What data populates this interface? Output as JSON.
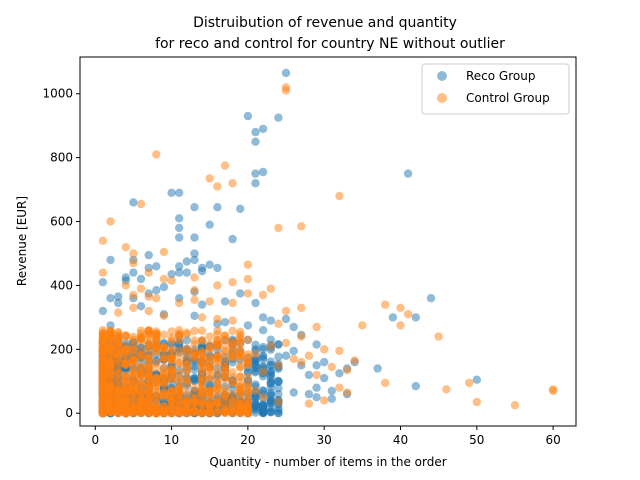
{
  "chart_data": {
    "type": "scatter",
    "title_line1": "Distruibution of revenue and quantity",
    "title_line2": "for reco and control for country NE without outlier",
    "xlabel": "Quantity - number of items in the order",
    "ylabel": "Revenue [EUR]",
    "xlim": [
      -2,
      63
    ],
    "ylim": [
      -40,
      1115
    ],
    "xticks": [
      0,
      10,
      20,
      30,
      40,
      50,
      60
    ],
    "yticks": [
      0,
      200,
      400,
      600,
      800,
      1000
    ],
    "grid": false,
    "legend_position": "upper right",
    "colors": {
      "reco": "#1f77b4",
      "control": "#ff7f0e"
    },
    "series": [
      {
        "name": "Reco Group",
        "color": "#1f77b4",
        "points": [
          [
            25,
            1065
          ],
          [
            20,
            930
          ],
          [
            24,
            925
          ],
          [
            22,
            890
          ],
          [
            21,
            880
          ],
          [
            21,
            850
          ],
          [
            22,
            755
          ],
          [
            21,
            750
          ],
          [
            21,
            720
          ],
          [
            41,
            750
          ],
          [
            5,
            660
          ],
          [
            10,
            690
          ],
          [
            11,
            690
          ],
          [
            13,
            645
          ],
          [
            16,
            645
          ],
          [
            19,
            640
          ],
          [
            11,
            610
          ],
          [
            15,
            590
          ],
          [
            11,
            580
          ],
          [
            11,
            550
          ],
          [
            13,
            550
          ],
          [
            18,
            545
          ],
          [
            7,
            495
          ],
          [
            13,
            500
          ],
          [
            13,
            480
          ],
          [
            5,
            480
          ],
          [
            2,
            480
          ],
          [
            12,
            475
          ],
          [
            15,
            465
          ],
          [
            8,
            460
          ],
          [
            16,
            455
          ],
          [
            14,
            455
          ],
          [
            11,
            460
          ],
          [
            7,
            455
          ],
          [
            11,
            440
          ],
          [
            14,
            445
          ],
          [
            5,
            440
          ],
          [
            12,
            440
          ],
          [
            10,
            435
          ],
          [
            4,
            425
          ],
          [
            6,
            420
          ],
          [
            4,
            415
          ],
          [
            1,
            410
          ],
          [
            9,
            395
          ],
          [
            8,
            385
          ],
          [
            13,
            380
          ],
          [
            7,
            375
          ],
          [
            19,
            375
          ],
          [
            3,
            365
          ],
          [
            2,
            360
          ],
          [
            11,
            360
          ],
          [
            5,
            360
          ],
          [
            44,
            360
          ],
          [
            39,
            300
          ],
          [
            42,
            300
          ],
          [
            17,
            350
          ],
          [
            3,
            345
          ],
          [
            21,
            345
          ],
          [
            14,
            340
          ],
          [
            6,
            335
          ],
          [
            1,
            320
          ],
          [
            9,
            310
          ],
          [
            13,
            305
          ],
          [
            22,
            300
          ],
          [
            25,
            295
          ],
          [
            23,
            290
          ],
          [
            17,
            285
          ],
          [
            16,
            280
          ],
          [
            2,
            275
          ],
          [
            20,
            275
          ],
          [
            26,
            270
          ],
          [
            22,
            260
          ],
          [
            27,
            245
          ],
          [
            11,
            240
          ],
          [
            18,
            230
          ],
          [
            23,
            230
          ],
          [
            19,
            220
          ],
          [
            29,
            215
          ],
          [
            24,
            215
          ],
          [
            21,
            200
          ],
          [
            26,
            195
          ],
          [
            25,
            180
          ],
          [
            22,
            180
          ],
          [
            30,
            160
          ],
          [
            34,
            160
          ],
          [
            27,
            150
          ],
          [
            29,
            150
          ],
          [
            33,
            140
          ],
          [
            37,
            140
          ],
          [
            32,
            125
          ],
          [
            28,
            120
          ],
          [
            30,
            110
          ],
          [
            24,
            100
          ],
          [
            42,
            85
          ],
          [
            50,
            105
          ],
          [
            29,
            80
          ],
          [
            31,
            70
          ],
          [
            26,
            65
          ],
          [
            28,
            60
          ],
          [
            33,
            60
          ],
          [
            29,
            50
          ],
          [
            31,
            45
          ],
          [
            23,
            40
          ],
          [
            19,
            35
          ],
          [
            24,
            15
          ],
          [
            14,
            5
          ],
          [
            16,
            5
          ],
          [
            17,
            15
          ],
          [
            20,
            10
          ],
          [
            2,
            240
          ],
          [
            3,
            230
          ],
          [
            5,
            220
          ],
          [
            7,
            210
          ],
          [
            9,
            220
          ],
          [
            11,
            200
          ],
          [
            14,
            190
          ],
          [
            16,
            180
          ],
          [
            18,
            170
          ],
          [
            1,
            120
          ],
          [
            2,
            100
          ],
          [
            4,
            80
          ],
          [
            6,
            60
          ],
          [
            8,
            40
          ],
          [
            10,
            30
          ],
          [
            12,
            20
          ],
          [
            15,
            15
          ],
          [
            3,
            10
          ],
          [
            1,
            0
          ]
        ]
      },
      {
        "name": "Control Group",
        "color": "#ff7f0e",
        "points": [
          [
            25,
            1020
          ],
          [
            25,
            1010
          ],
          [
            8,
            810
          ],
          [
            17,
            775
          ],
          [
            15,
            735
          ],
          [
            18,
            720
          ],
          [
            16,
            710
          ],
          [
            32,
            680
          ],
          [
            6,
            655
          ],
          [
            2,
            600
          ],
          [
            1,
            540
          ],
          [
            4,
            520
          ],
          [
            5,
            500
          ],
          [
            9,
            505
          ],
          [
            5,
            470
          ],
          [
            20,
            465
          ],
          [
            24,
            580
          ],
          [
            27,
            585
          ],
          [
            7,
            440
          ],
          [
            1,
            440
          ],
          [
            13,
            425
          ],
          [
            9,
            420
          ],
          [
            10,
            415
          ],
          [
            20,
            420
          ],
          [
            18,
            410
          ],
          [
            16,
            400
          ],
          [
            4,
            400
          ],
          [
            6,
            390
          ],
          [
            13,
            385
          ],
          [
            20,
            375
          ],
          [
            5,
            370
          ],
          [
            7,
            365
          ],
          [
            8,
            360
          ],
          [
            13,
            355
          ],
          [
            15,
            350
          ],
          [
            11,
            345
          ],
          [
            18,
            345
          ],
          [
            22,
            370
          ],
          [
            23,
            390
          ],
          [
            38,
            340
          ],
          [
            40,
            330
          ],
          [
            41,
            310
          ],
          [
            27,
            330
          ],
          [
            25,
            320
          ],
          [
            35,
            275
          ],
          [
            40,
            275
          ],
          [
            45,
            240
          ],
          [
            5,
            330
          ],
          [
            7,
            320
          ],
          [
            3,
            315
          ],
          [
            9,
            305
          ],
          [
            14,
            300
          ],
          [
            16,
            295
          ],
          [
            18,
            290
          ],
          [
            24,
            280
          ],
          [
            29,
            270
          ],
          [
            27,
            240
          ],
          [
            20,
            230
          ],
          [
            25,
            220
          ],
          [
            23,
            210
          ],
          [
            30,
            200
          ],
          [
            32,
            195
          ],
          [
            17,
            190
          ],
          [
            21,
            185
          ],
          [
            28,
            180
          ],
          [
            26,
            170
          ],
          [
            34,
            165
          ],
          [
            27,
            160
          ],
          [
            24,
            150
          ],
          [
            31,
            145
          ],
          [
            33,
            135
          ],
          [
            22,
            130
          ],
          [
            29,
            120
          ],
          [
            38,
            95
          ],
          [
            46,
            75
          ],
          [
            49,
            95
          ],
          [
            50,
            35
          ],
          [
            55,
            25
          ],
          [
            60,
            75
          ],
          [
            60,
            70
          ],
          [
            32,
            80
          ],
          [
            33,
            65
          ],
          [
            30,
            40
          ],
          [
            28,
            30
          ],
          [
            22,
            50
          ],
          [
            24,
            35
          ],
          [
            21,
            70
          ],
          [
            19,
            15
          ],
          [
            18,
            60
          ],
          [
            1,
            260
          ],
          [
            2,
            255
          ],
          [
            3,
            250
          ],
          [
            4,
            240
          ],
          [
            5,
            230
          ],
          [
            6,
            225
          ],
          [
            7,
            220
          ],
          [
            8,
            210
          ],
          [
            10,
            200
          ],
          [
            12,
            190
          ],
          [
            14,
            180
          ],
          [
            15,
            170
          ],
          [
            1,
            100
          ],
          [
            2,
            90
          ],
          [
            3,
            80
          ],
          [
            4,
            70
          ],
          [
            6,
            60
          ],
          [
            8,
            50
          ],
          [
            10,
            40
          ],
          [
            12,
            30
          ],
          [
            1,
            10
          ],
          [
            3,
            5
          ],
          [
            5,
            0
          ],
          [
            7,
            10
          ],
          [
            9,
            20
          ],
          [
            11,
            10
          ],
          [
            13,
            5
          ]
        ]
      }
    ],
    "dense_region": {
      "reco": {
        "x_max": 24,
        "y_max": 230
      },
      "control": {
        "x_max": 20,
        "y_max": 260
      }
    }
  }
}
